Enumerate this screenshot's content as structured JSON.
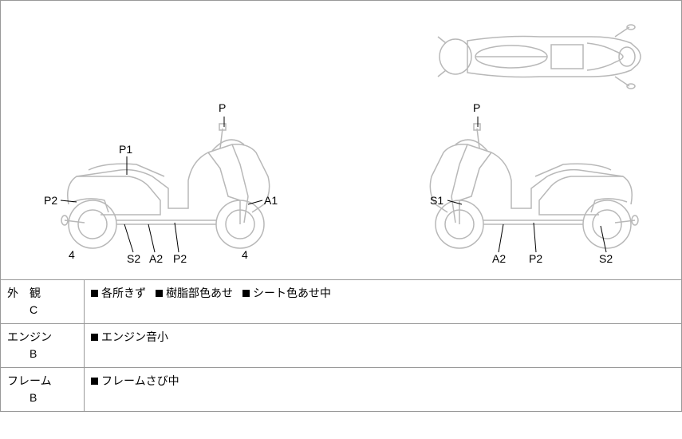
{
  "diagram": {
    "left_scooter": {
      "labels": {
        "P": "P",
        "P1": "P1",
        "P2_left": "P2",
        "A1": "A1",
        "four_left": "4",
        "four_right": "4",
        "S2": "S2",
        "A2": "A2",
        "P2_bottom": "P2"
      }
    },
    "right_scooter": {
      "labels": {
        "P": "P",
        "S1": "S1",
        "A2": "A2",
        "P2": "P2",
        "S2": "S2"
      }
    }
  },
  "table": {
    "rows": [
      {
        "category": "外　観",
        "grade": "C",
        "notes": [
          "各所きず",
          "樹脂部色あせ",
          "シート色あせ中"
        ]
      },
      {
        "category": "エンジン",
        "grade": "B",
        "notes": [
          "エンジン音小"
        ]
      },
      {
        "category": "フレーム",
        "grade": "B",
        "notes": [
          "フレームさび中"
        ]
      }
    ]
  },
  "colors": {
    "line": "#b8b8b8",
    "border": "#999999",
    "text": "#000000",
    "bullet": "#000000"
  }
}
